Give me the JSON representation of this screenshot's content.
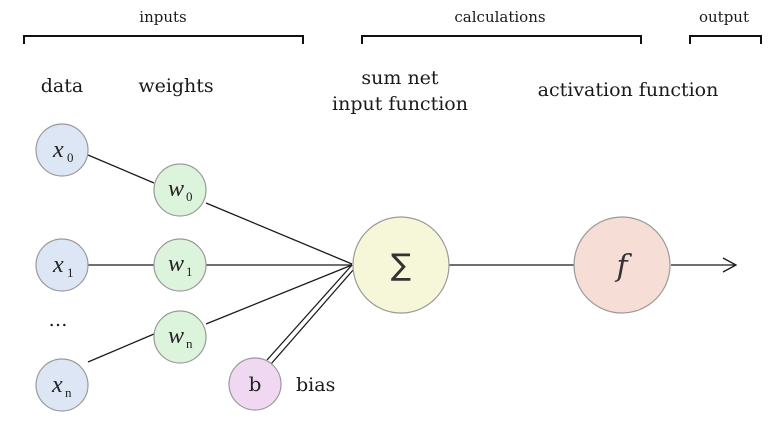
{
  "sections": {
    "inputs": "inputs",
    "calculations": "calculations",
    "output": "output"
  },
  "column_labels": {
    "data": "data",
    "weights": "weights",
    "sum_line1": "sum net",
    "sum_line2": "input function",
    "activation": "activation function"
  },
  "data_nodes": [
    {
      "symbol": "x",
      "sub": "0"
    },
    {
      "symbol": "x",
      "sub": "1"
    },
    {
      "symbol": "x",
      "sub": "n"
    }
  ],
  "ellipsis": "…",
  "weight_nodes": [
    {
      "symbol": "w",
      "sub": "0"
    },
    {
      "symbol": "w",
      "sub": "1"
    },
    {
      "symbol": "w",
      "sub": "n"
    }
  ],
  "bias": {
    "symbol": "b",
    "label": "bias"
  },
  "sum_node": {
    "symbol": "∑"
  },
  "activation_node": {
    "symbol": "f"
  },
  "colors": {
    "data_fill": "#dde6f4",
    "weight_fill": "#dcf3dc",
    "bias_fill": "#f0d8f3",
    "sum_fill": "#f6f6d8",
    "activation_fill": "#f6ddd6",
    "stroke": "#9a9a9a"
  }
}
